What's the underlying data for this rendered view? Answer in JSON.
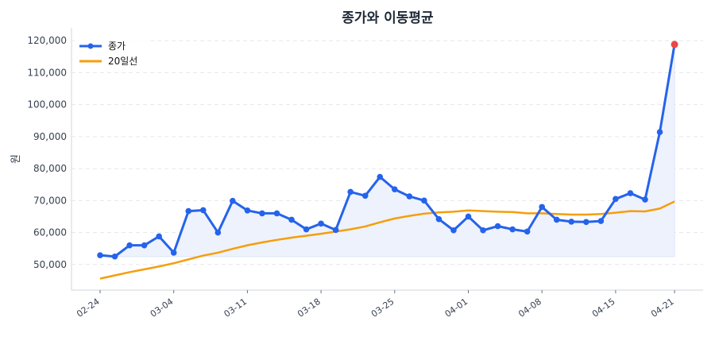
{
  "chart_data": {
    "type": "line",
    "title": "종가와 이동평균",
    "xlabel": "",
    "ylabel": "원",
    "ylim": [
      42000,
      124000
    ],
    "grid": true,
    "legend_position": "top-left",
    "x": [
      "02-24",
      "02-25",
      "02-26",
      "02-27",
      "02-28",
      "03-04",
      "03-05",
      "03-06",
      "03-07",
      "03-10",
      "03-11",
      "03-12",
      "03-13",
      "03-14",
      "03-17",
      "03-18",
      "03-19",
      "03-20",
      "03-21",
      "03-24",
      "03-25",
      "03-26",
      "03-27",
      "03-28",
      "03-31",
      "04-01",
      "04-02",
      "04-03",
      "04-04",
      "04-07",
      "04-08",
      "04-09",
      "04-10",
      "04-11",
      "04-14",
      "04-15",
      "04-16",
      "04-17",
      "04-18",
      "04-21"
    ],
    "x_ticks": [
      "02-24",
      "03-04",
      "03-11",
      "03-18",
      "03-25",
      "04-01",
      "04-08",
      "04-15",
      "04-21"
    ],
    "y_ticks": [
      50000,
      60000,
      70000,
      80000,
      90000,
      100000,
      110000,
      120000
    ],
    "y_tick_labels": [
      "50,000",
      "60,000",
      "70,000",
      "80,000",
      "90,000",
      "100,000",
      "110,000",
      "120,000"
    ],
    "series": [
      {
        "name": "종가",
        "color": "#2563eb",
        "values": [
          52900,
          52500,
          56000,
          56000,
          58800,
          53700,
          66700,
          67000,
          60000,
          69900,
          66900,
          66000,
          66000,
          64000,
          61000,
          62800,
          60800,
          72700,
          71500,
          77400,
          73500,
          71300,
          70000,
          64200,
          60700,
          65000,
          60700,
          62000,
          61000,
          60300,
          68000,
          64000,
          63400,
          63300,
          63600,
          70500,
          72300,
          70300,
          91400,
          118800
        ]
      },
      {
        "name": "20일선",
        "color": "#f59e0b",
        "values": [
          45600,
          46600,
          47600,
          48500,
          49400,
          50400,
          51600,
          52800,
          53700,
          54900,
          56000,
          56900,
          57700,
          58400,
          59000,
          59600,
          60300,
          61000,
          61900,
          63200,
          64400,
          65200,
          65900,
          66300,
          66500,
          66900,
          66700,
          66500,
          66400,
          66000,
          66000,
          65800,
          65600,
          65600,
          65800,
          66200,
          66700,
          66600,
          67500,
          69700
        ]
      }
    ],
    "highlight_last_color": "#ef4444",
    "fill_color": "#eef2fc"
  }
}
